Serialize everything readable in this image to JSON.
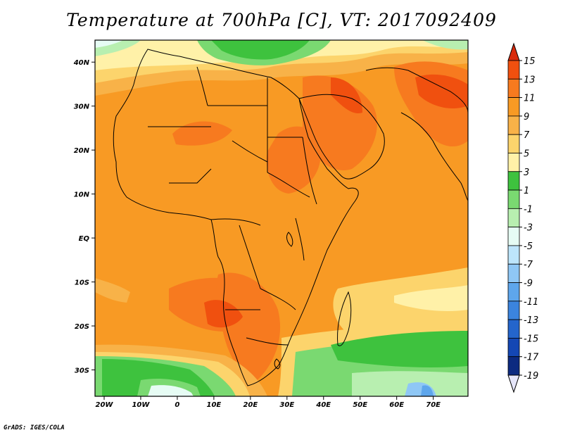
{
  "title": "Temperature at 700hPa [C], VT: 2017092409",
  "credit": "GrADS: IGES/COLA",
  "lon_labels": [
    "20W",
    "10W",
    "0",
    "10E",
    "20E",
    "30E",
    "40E",
    "50E",
    "60E",
    "70E"
  ],
  "lon_values": [
    -20,
    -10,
    0,
    10,
    20,
    30,
    40,
    50,
    60,
    70
  ],
  "lat_labels": [
    "40N",
    "30N",
    "20N",
    "10N",
    "EQ",
    "10S",
    "20S",
    "30S"
  ],
  "lat_values": [
    40,
    30,
    20,
    10,
    0,
    -10,
    -20,
    -30
  ],
  "extent": {
    "lon": [
      -22.5,
      79.5
    ],
    "lat": [
      -36,
      45
    ]
  },
  "colorbar": {
    "labels": [
      "15",
      "13",
      "11",
      "9",
      "7",
      "5",
      "3",
      "1",
      "-1",
      "-3",
      "-5",
      "-7",
      "-9",
      "-11",
      "-13",
      "-15",
      "-17",
      "-19"
    ],
    "colors": [
      "#d92a0c",
      "#f0500f",
      "#f77a1f",
      "#f89a24",
      "#f8b248",
      "#fcd46c",
      "#fff1a8",
      "#3ec23e",
      "#7ad971",
      "#b8efb0",
      "#e6fcf4",
      "#bde5fb",
      "#8fc7f5",
      "#5ea6ec",
      "#3b84de",
      "#2465cc",
      "#1447b4",
      "#0c2a80",
      "#0c1660"
    ]
  },
  "colors": {
    "land_border": "#000000",
    "frame": "#000000"
  }
}
